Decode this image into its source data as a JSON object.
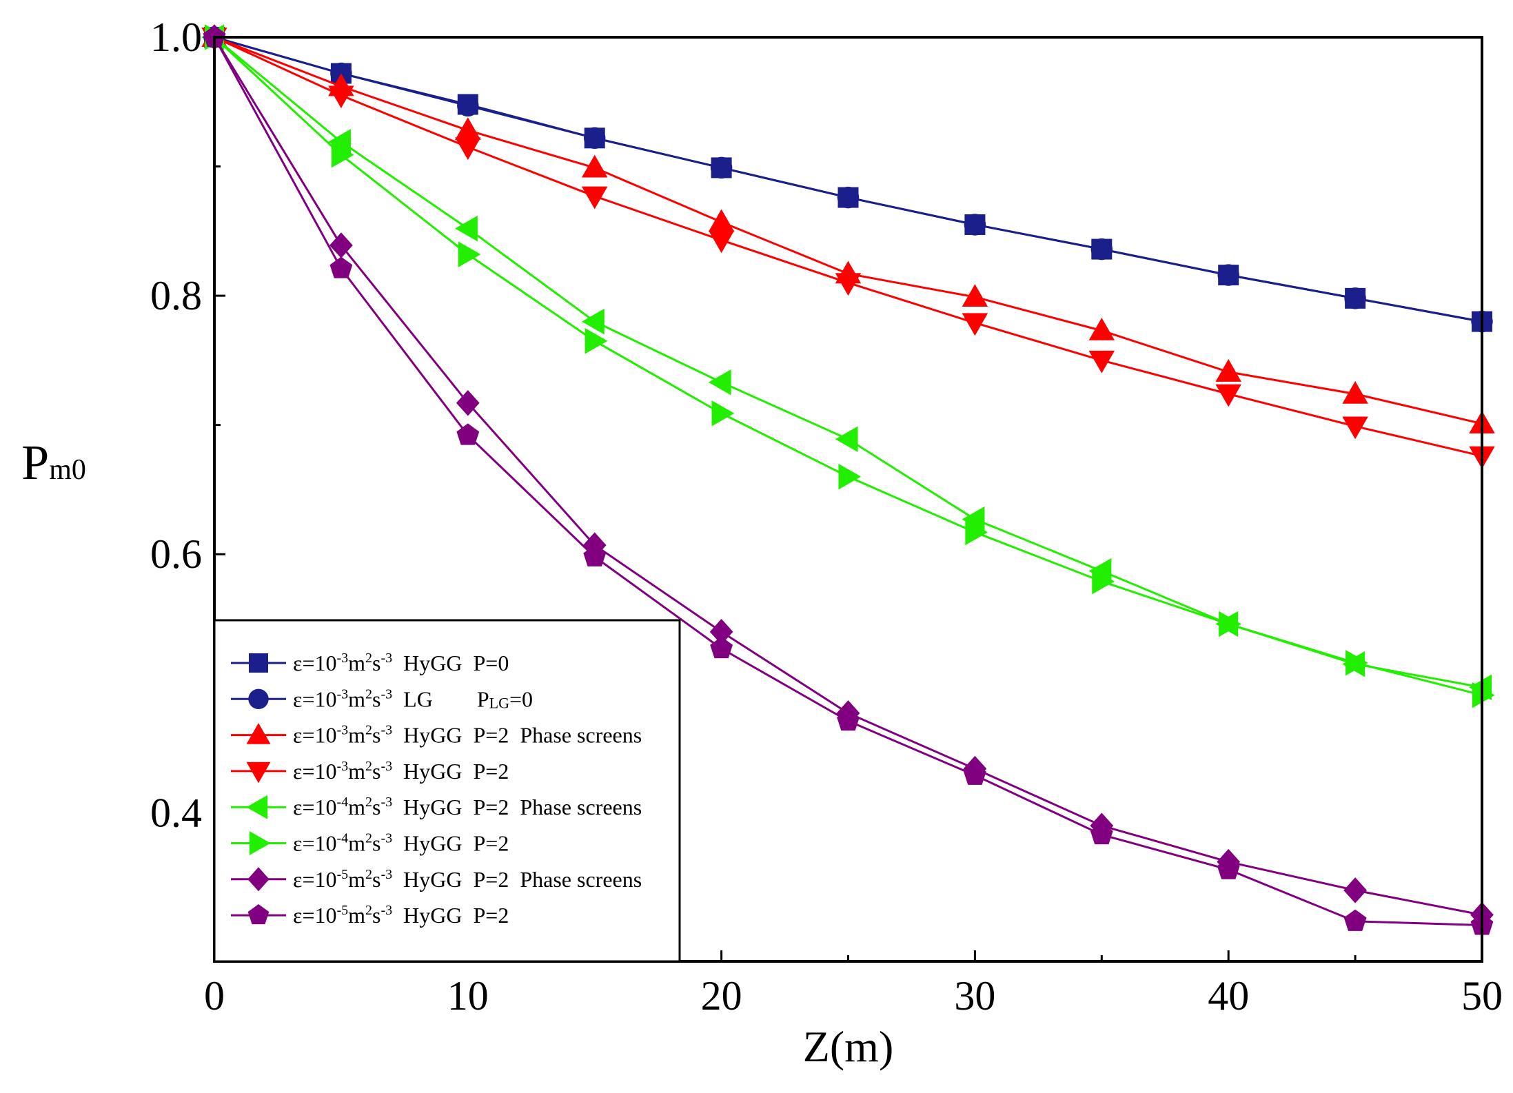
{
  "chart_data": {
    "type": "line",
    "xlabel": "Z(m)",
    "ylabel": "P",
    "ylabel_sub": "m0",
    "xlim": [
      0,
      50
    ],
    "ylim": [
      0.285,
      1.0
    ],
    "xticks": [
      0,
      10,
      20,
      30,
      40,
      50
    ],
    "xtick_labels": [
      "0",
      "10",
      "20",
      "30",
      "40",
      "50"
    ],
    "yticks": [
      0.4,
      0.6,
      0.8,
      1.0
    ],
    "ytick_labels": [
      "0.4",
      "0.6",
      "0.8",
      "1.0"
    ],
    "grid": false,
    "legend_position": "bottom-left",
    "x": [
      0,
      5,
      10,
      15,
      20,
      25,
      30,
      35,
      40,
      45,
      50
    ],
    "series": [
      {
        "name_parts": [
          "ε=10",
          "-3",
          "m",
          "2",
          "s",
          "-3",
          "  HyGG  P=0"
        ],
        "color": "#1a1f8c",
        "marker": "square",
        "values": [
          1.0,
          0.972,
          0.948,
          0.922,
          0.899,
          0.876,
          0.855,
          0.836,
          0.816,
          0.798,
          0.78
        ]
      },
      {
        "name_parts": [
          "ε=10",
          "-3",
          "m",
          "2",
          "s",
          "-3",
          "  LG        P",
          "LG",
          "=0"
        ],
        "color": "#1a1f8c",
        "marker": "circle",
        "values": [
          1.0,
          0.972,
          0.947,
          0.922,
          0.899,
          0.876,
          0.855,
          0.836,
          0.816,
          0.798,
          0.78
        ]
      },
      {
        "name_parts": [
          "ε=10",
          "-3",
          "m",
          "2",
          "s",
          "-3",
          "  HyGG  P=2  Phase screens"
        ],
        "color": "#ff0000",
        "marker": "triangle-up",
        "values": [
          1.0,
          0.962,
          0.928,
          0.899,
          0.857,
          0.817,
          0.799,
          0.773,
          0.741,
          0.724,
          0.701
        ]
      },
      {
        "name_parts": [
          "ε=10",
          "-3",
          "m",
          "2",
          "s",
          "-3",
          "  HyGG  P=2"
        ],
        "color": "#ff0000",
        "marker": "triangle-down",
        "values": [
          1.0,
          0.955,
          0.915,
          0.877,
          0.843,
          0.81,
          0.779,
          0.75,
          0.724,
          0.699,
          0.676
        ]
      },
      {
        "name_parts": [
          "ε=10",
          "-4",
          "m",
          "2",
          "s",
          "-3",
          "  HyGG  P=2  Phase screens"
        ],
        "color": "#22ee00",
        "marker": "triangle-left",
        "values": [
          1.0,
          0.919,
          0.852,
          0.78,
          0.733,
          0.689,
          0.627,
          0.587,
          0.546,
          0.515,
          0.497
        ]
      },
      {
        "name_parts": [
          "ε=10",
          "-4",
          "m",
          "2",
          "s",
          "-3",
          "  HyGG  P=2"
        ],
        "color": "#22ee00",
        "marker": "triangle-right",
        "values": [
          1.0,
          0.909,
          0.832,
          0.765,
          0.709,
          0.66,
          0.617,
          0.579,
          0.546,
          0.516,
          0.491
        ]
      },
      {
        "name_parts": [
          "ε=10",
          "-5",
          "m",
          "2",
          "s",
          "-3",
          "  HyGG  P=2  Phase screens"
        ],
        "color": "#800080",
        "marker": "diamond",
        "values": [
          1.0,
          0.839,
          0.717,
          0.607,
          0.54,
          0.477,
          0.434,
          0.39,
          0.362,
          0.34,
          0.321
        ]
      },
      {
        "name_parts": [
          "ε=10",
          "-5",
          "m",
          "2",
          "s",
          "-3",
          "  HyGG  P=2"
        ],
        "color": "#800080",
        "marker": "pentagon",
        "values": [
          1.0,
          0.821,
          0.692,
          0.598,
          0.527,
          0.471,
          0.429,
          0.383,
          0.356,
          0.316,
          0.313
        ]
      }
    ]
  }
}
